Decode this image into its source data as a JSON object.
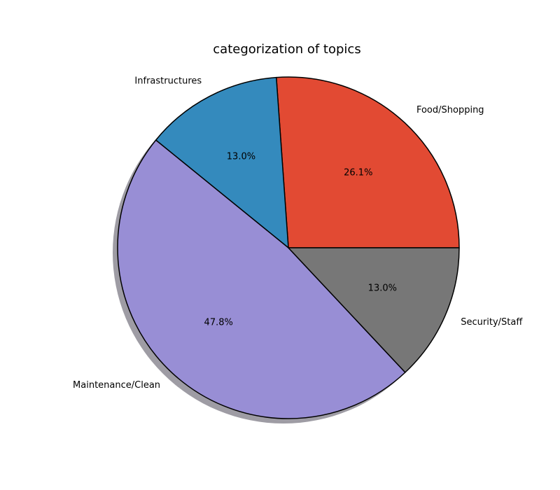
{
  "chart_data": {
    "type": "pie",
    "title": "categorization of topics",
    "categories": [
      "Food/Shopping",
      "Infrastructures",
      "Maintenance/Clean",
      "Security/Staff"
    ],
    "values": [
      26.1,
      13.0,
      47.8,
      13.0
    ],
    "value_labels": [
      "26.1%",
      "13.0%",
      "47.8%",
      "13.0%"
    ],
    "colors": [
      "#E24A33",
      "#348ABD",
      "#988ED5",
      "#777777"
    ],
    "start_angle_deg": 0,
    "direction": "counterclockwise",
    "shadow": true,
    "edge_color": "#000000"
  }
}
